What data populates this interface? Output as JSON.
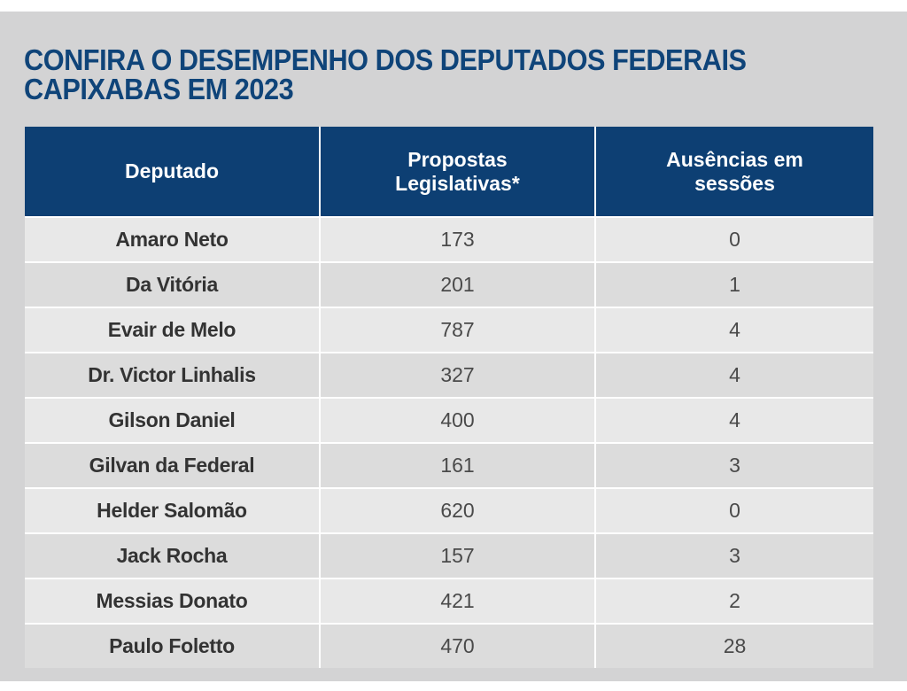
{
  "title": {
    "line1": "CONFIRA O DESEMPENHO DOS DEPUTADOS FEDERAIS",
    "line2": "CAPIXABAS EM 2023"
  },
  "table": {
    "headers": {
      "deputado": "Deputado",
      "propostas_line1": "Propostas",
      "propostas_line2": "Legislativas*",
      "ausencias_line1": "Ausências em",
      "ausencias_line2": "sessões"
    },
    "rows": [
      {
        "name": "Amaro Neto",
        "propostas": "173",
        "ausencias": "0"
      },
      {
        "name": "Da Vitória",
        "propostas": "201",
        "ausencias": "1"
      },
      {
        "name": "Evair de Melo",
        "propostas": "787",
        "ausencias": "4"
      },
      {
        "name": "Dr. Victor Linhalis",
        "propostas": "327",
        "ausencias": "4"
      },
      {
        "name": "Gilson Daniel",
        "propostas": "400",
        "ausencias": "4"
      },
      {
        "name": "Gilvan da Federal",
        "propostas": "161",
        "ausencias": "3"
      },
      {
        "name": "Helder Salomão",
        "propostas": "620",
        "ausencias": "0"
      },
      {
        "name": "Jack Rocha",
        "propostas": "157",
        "ausencias": "3"
      },
      {
        "name": "Messias Donato",
        "propostas": "421",
        "ausencias": "2"
      },
      {
        "name": "Paulo Foletto",
        "propostas": "470",
        "ausencias": "28"
      }
    ]
  },
  "colors": {
    "title": "#0f4479",
    "header_bg": "#0d3f73",
    "panel_bg": "#d3d3d4",
    "row_light": "#e8e8e8",
    "row_dark": "#dcdcdc"
  }
}
